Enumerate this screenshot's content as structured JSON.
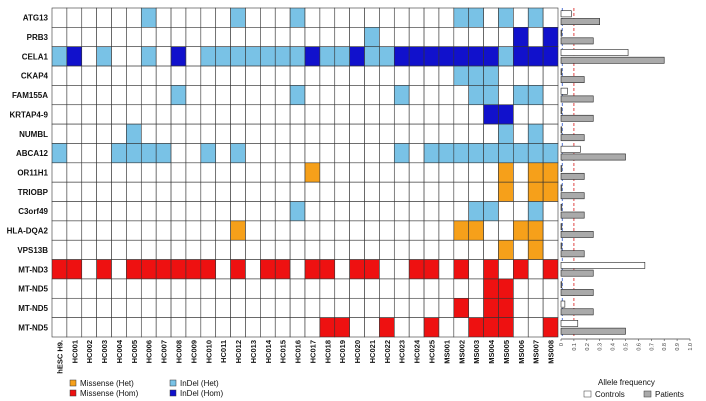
{
  "chart_data": {
    "type": "heatmap",
    "genes": [
      "ATG13",
      "PRB3",
      "CELA1",
      "CKAP4",
      "FAM155A",
      "KRTAP4-9",
      "NUMBL",
      "ABCA12",
      "OR11H1",
      "TRIOBP",
      "C3orf49",
      "HLA-DQA2",
      "VPS13B",
      "MT-ND3",
      "MT-ND5",
      "MT-ND5",
      "MT-ND5"
    ],
    "samples": [
      "hESC H9.",
      "HC001",
      "HC002",
      "HC003",
      "HC004",
      "HC005",
      "HC006",
      "HC007",
      "HC008",
      "HC009",
      "HC010",
      "HC011",
      "HC012",
      "HC013",
      "HC014",
      "HC015",
      "HC016",
      "HC017",
      "HC018",
      "HC019",
      "HC020",
      "HC021",
      "HC022",
      "HC023",
      "HC024",
      "HC025",
      "MS001",
      "MS002",
      "MS003",
      "MS004",
      "MS005",
      "MS006",
      "MS007",
      "MS008"
    ],
    "variant_codes": {
      "0": "none",
      "1": "Missense (Het)",
      "2": "Missense (Hom)",
      "3": "InDel (Het)",
      "4": "InDel (Hom)"
    },
    "matrix": [
      "0000003000003000300000000003303030",
      "0000000000000000000003000000000404",
      "3403003040333333343343344444443444",
      "0000000000000000000000000003330000",
      "0000000030000000300000030000330330",
      "0000000000000000000000000000044000",
      "0000030000000000000000000000003030",
      "3000333300303000000000030333333333",
      "0000000000000000010000000000001011",
      "0000000000000000000000000000001011",
      "0000000000000000300000000000330030",
      "0000000000001000000000000001100110",
      "0000000000000000000000000000001010",
      "2202022222202022022022002202020202",
      "0000000000000000000000000000022000",
      "0000000000000000000000000002022000",
      "0000000000000000002200200200222002"
    ],
    "allele_frequency": {
      "title": "Allele frequency",
      "xlim": [
        0,
        1
      ],
      "ticks": [
        "0",
        "0.1",
        "0.2",
        "0.3",
        "0.4",
        "0.5",
        "0.6",
        "0.7",
        "0.8",
        "0.9",
        "1.0"
      ],
      "series": [
        {
          "name": "Controls",
          "values": [
            0.08,
            0.0,
            0.52,
            0.0,
            0.05,
            0.0,
            0.0,
            0.15,
            0.0,
            0.0,
            0.0,
            0.0,
            0.0,
            0.65,
            0.0,
            0.03,
            0.13
          ]
        },
        {
          "name": "Patients",
          "values": [
            0.3,
            0.25,
            0.8,
            0.18,
            0.25,
            0.25,
            0.18,
            0.5,
            0.18,
            0.18,
            0.18,
            0.25,
            0.18,
            0.25,
            0.25,
            0.25,
            0.5
          ]
        }
      ],
      "reference_lines": [
        0.01,
        0.1
      ]
    },
    "legend": {
      "variants": [
        "Missense (Het)",
        "InDel (Het)",
        "Missense (Hom)",
        "InDel (Hom)"
      ],
      "frequency": [
        "Controls",
        "Patients"
      ]
    },
    "colors": {
      "none": "#ffffff",
      "missense_het": "#f6a01a",
      "missense_hom": "#ee1111",
      "indel_het": "#79c2e6",
      "indel_hom": "#1111cc",
      "controls": "#ffffff",
      "patients": "#aaaaaa",
      "ref_blue": "#4466cc",
      "ref_red": "#dd3333"
    }
  }
}
